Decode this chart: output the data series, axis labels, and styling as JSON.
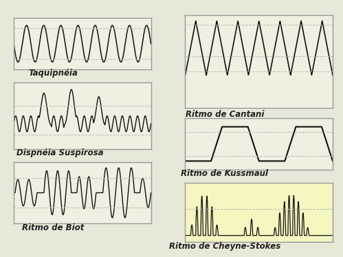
{
  "bg_main": "#f0efe0",
  "bg_cheyne": "#f5f5c0",
  "border_color": "#999999",
  "line_color": "#111111",
  "dashed_color": "#bbbbbb",
  "fig_bg": "#e8e8d8",
  "labels": {
    "taquipneia": "Taquipnéia",
    "dispneia": "Dispnéia Suspirosa",
    "biot": "Ritmo de Biot",
    "cantani": "Ritmo de Cantani",
    "kussmaul": "Ritmo de Kussmaul",
    "cheyne": "Ritmo de Cheyne-Stokes"
  }
}
